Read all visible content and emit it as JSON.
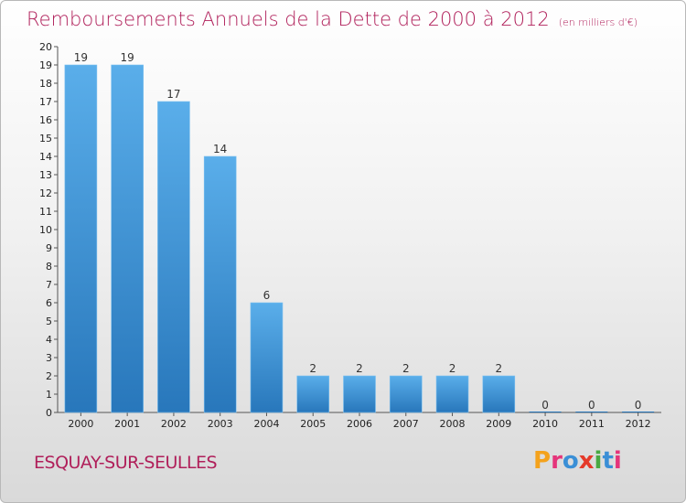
{
  "header": {
    "title": "Remboursements Annuels de la Dette de 2000 à 2012",
    "unit": "(en milliers d'€)"
  },
  "footer": {
    "commune": "ESQUAY-SUR-SEULLES",
    "logo_text": "Proxiti",
    "logo_colors": [
      "#f4a21c",
      "#e5347a",
      "#3a8fd6",
      "#e53a2a",
      "#49a942",
      "#3a8fd6",
      "#e5347a"
    ]
  },
  "chart_data": {
    "type": "bar",
    "title": "Remboursements Annuels de la Dette de 2000 à 2012",
    "xlabel": "",
    "ylabel": "",
    "categories": [
      "2000",
      "2001",
      "2002",
      "2003",
      "2004",
      "2005",
      "2006",
      "2007",
      "2008",
      "2009",
      "2010",
      "2011",
      "2012"
    ],
    "values": [
      19,
      19,
      17,
      14,
      6,
      2,
      2,
      2,
      2,
      2,
      0,
      0,
      0
    ],
    "ylim": [
      0,
      20
    ],
    "yticks": [
      0,
      1,
      2,
      3,
      4,
      5,
      6,
      7,
      8,
      9,
      10,
      11,
      12,
      13,
      14,
      15,
      16,
      17,
      18,
      19,
      20
    ],
    "grid": false,
    "bar_color": "#4da3e2",
    "bar_color_dark": "#2b7bbf"
  }
}
